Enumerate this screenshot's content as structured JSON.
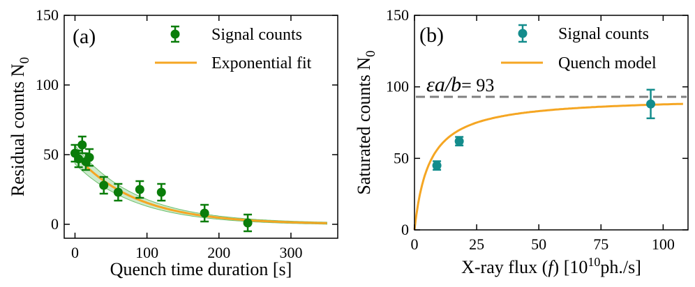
{
  "chart_data": [
    {
      "type": "scatter",
      "panel_label": "(a)",
      "xlabel": "Quench time duration [s]",
      "ylabel": "Residual counts N",
      "ylabel_subscript": "0",
      "xlim": [
        -15,
        365
      ],
      "ylim": [
        -10,
        150
      ],
      "xticks": [
        0,
        100,
        200,
        300
      ],
      "yticks": [
        0,
        50,
        100,
        150
      ],
      "grid": false,
      "legend_position": "top-right",
      "colors": {
        "points": "#0a7d0a",
        "fit": "#f5a623",
        "band": "#8fd18f"
      },
      "series": [
        {
          "name": "Signal counts",
          "kind": "points_with_error",
          "x": [
            0,
            5,
            10,
            15,
            20,
            40,
            60,
            90,
            120,
            180,
            240
          ],
          "y": [
            51,
            47,
            57,
            45,
            48,
            28,
            23,
            25,
            23,
            8,
            1
          ],
          "yerr": [
            6,
            6,
            6,
            6,
            6,
            6,
            6,
            6,
            6,
            6,
            6
          ]
        },
        {
          "name": "Exponential fit",
          "kind": "line",
          "model": {
            "amplitude": 50,
            "tau": 85,
            "offset": 0,
            "band_fraction": 0.12
          },
          "x_range": [
            0,
            350
          ]
        }
      ]
    },
    {
      "type": "scatter",
      "panel_label": "(b)",
      "xlabel_parts": [
        "X-ray flux (",
        "f",
        ") [10",
        "10",
        "ph./s]"
      ],
      "ylabel": "Saturated counts N",
      "ylabel_subscript": "0",
      "xlim": [
        0,
        110
      ],
      "ylim": [
        0,
        150
      ],
      "xticks": [
        0,
        25,
        50,
        75,
        100
      ],
      "yticks": [
        0,
        50,
        100,
        150
      ],
      "grid": false,
      "legend_position": "top-right",
      "colors": {
        "points": "#138c8c",
        "fit": "#f5a623",
        "dashed": "#808080"
      },
      "annotation": {
        "symbol": "εa/b",
        "value_text": "= 93",
        "value": 93
      },
      "series": [
        {
          "name": "Signal counts",
          "kind": "points_with_error",
          "x": [
            9,
            18,
            95
          ],
          "y": [
            45,
            62,
            88
          ],
          "yerr": [
            3,
            3,
            10
          ]
        },
        {
          "name": "Quench model",
          "kind": "line",
          "model": {
            "saturation": 93,
            "k": 6
          },
          "x_range": [
            0,
            108
          ]
        }
      ]
    }
  ]
}
